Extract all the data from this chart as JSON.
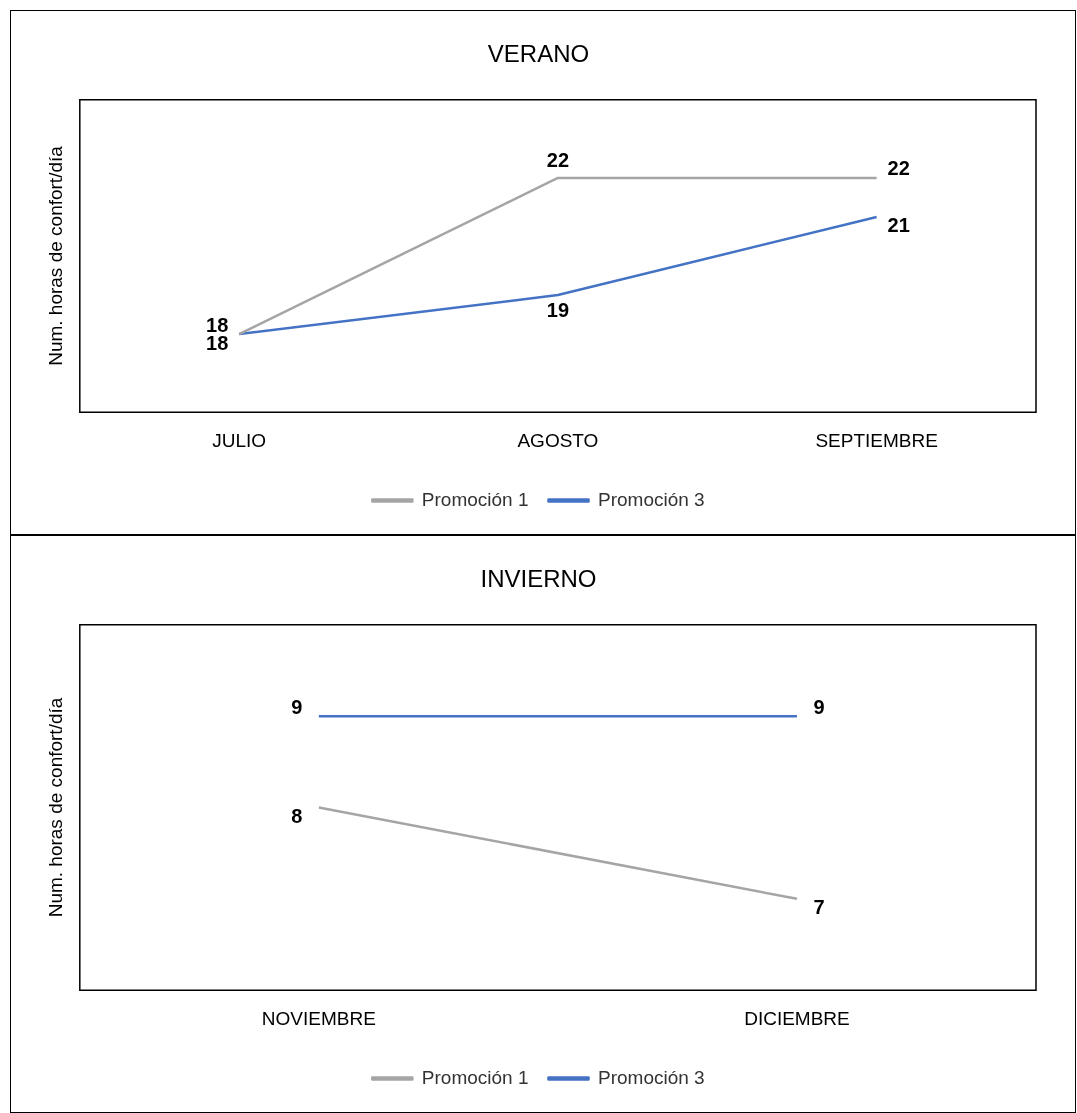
{
  "chart_data": [
    {
      "type": "line",
      "title": "VERANO",
      "ylabel": "Num. horas de confort/día",
      "categories": [
        "JULIO",
        "AGOSTO",
        "SEPTIEMBRE"
      ],
      "series": [
        {
          "name": "Promoción 1",
          "color": "#a5a5a5",
          "values": [
            18,
            22,
            22
          ]
        },
        {
          "name": "Promoción 3",
          "color": "#4472c4",
          "values": [
            18,
            19,
            21
          ]
        }
      ],
      "data_labels": true,
      "legend": "bottom",
      "grid": false,
      "marker": "none",
      "line_style": "solid"
    },
    {
      "type": "line",
      "title": "INVIERNO",
      "ylabel": "Num. horas de confort/día",
      "categories": [
        "NOVIEMBRE",
        "DICIEMBRE"
      ],
      "series": [
        {
          "name": "Promoción 1",
          "color": "#a5a5a5",
          "values": [
            8,
            7
          ]
        },
        {
          "name": "Promoción 3",
          "color": "#4472c4",
          "values": [
            9,
            9
          ]
        }
      ],
      "data_labels": true,
      "legend": "bottom",
      "grid": false,
      "marker": "none",
      "line_style": "solid"
    }
  ]
}
